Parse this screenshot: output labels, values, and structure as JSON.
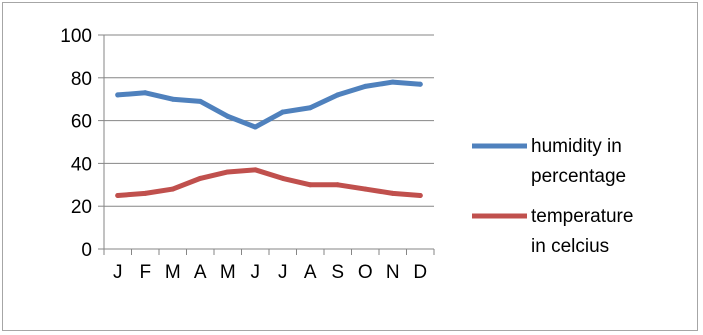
{
  "chart_data": {
    "type": "line",
    "categories": [
      "J",
      "F",
      "M",
      "A",
      "M",
      "J",
      "J",
      "A",
      "S",
      "O",
      "N",
      "D"
    ],
    "series": [
      {
        "name": "humidity in percentage",
        "name_lines": [
          "humidity in",
          "percentage"
        ],
        "color": "#4f81bd",
        "values": [
          72,
          73,
          70,
          69,
          62,
          57,
          64,
          66,
          72,
          76,
          78,
          77
        ]
      },
      {
        "name": "temperature in celcius",
        "name_lines": [
          "temperature",
          "in celcius"
        ],
        "color": "#c0504d",
        "values": [
          25,
          26,
          28,
          33,
          36,
          37,
          33,
          30,
          30,
          28,
          26,
          25
        ]
      }
    ],
    "ylim": [
      0,
      100
    ],
    "yticks": [
      0,
      20,
      40,
      60,
      80,
      100
    ],
    "grid": true,
    "legend": "right"
  }
}
